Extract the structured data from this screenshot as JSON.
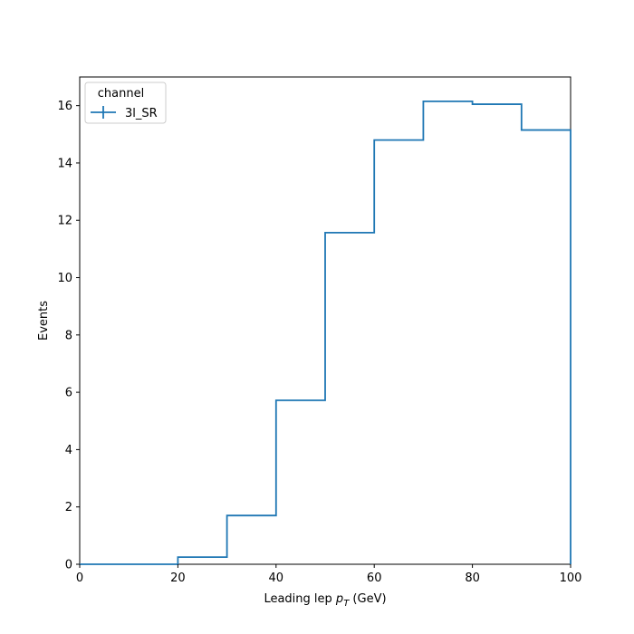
{
  "chart_data": {
    "type": "line",
    "drawstyle": "step-histogram",
    "xlabel_main": "Leading lep ",
    "xlabel_math_base": "p",
    "xlabel_math_sub": "T",
    "xlabel_suffix": " (GeV)",
    "ylabel": "Events",
    "xlim": [
      0,
      100
    ],
    "ylim": [
      0,
      17
    ],
    "xticks": [
      0,
      20,
      40,
      60,
      80,
      100
    ],
    "yticks": [
      0,
      2,
      4,
      6,
      8,
      10,
      12,
      14,
      16
    ],
    "grid": false,
    "legend": {
      "title": "channel",
      "placement": "top-left",
      "entries": [
        "3l_SR"
      ]
    },
    "series": [
      {
        "name": "3l_SR",
        "color": "#1f77b4",
        "bin_edges": [
          0,
          10,
          20,
          30,
          40,
          50,
          60,
          70,
          80,
          90,
          100
        ],
        "values": [
          0.0,
          0.0,
          0.25,
          1.7,
          5.72,
          11.57,
          14.8,
          16.15,
          16.05,
          15.15
        ]
      }
    ]
  }
}
